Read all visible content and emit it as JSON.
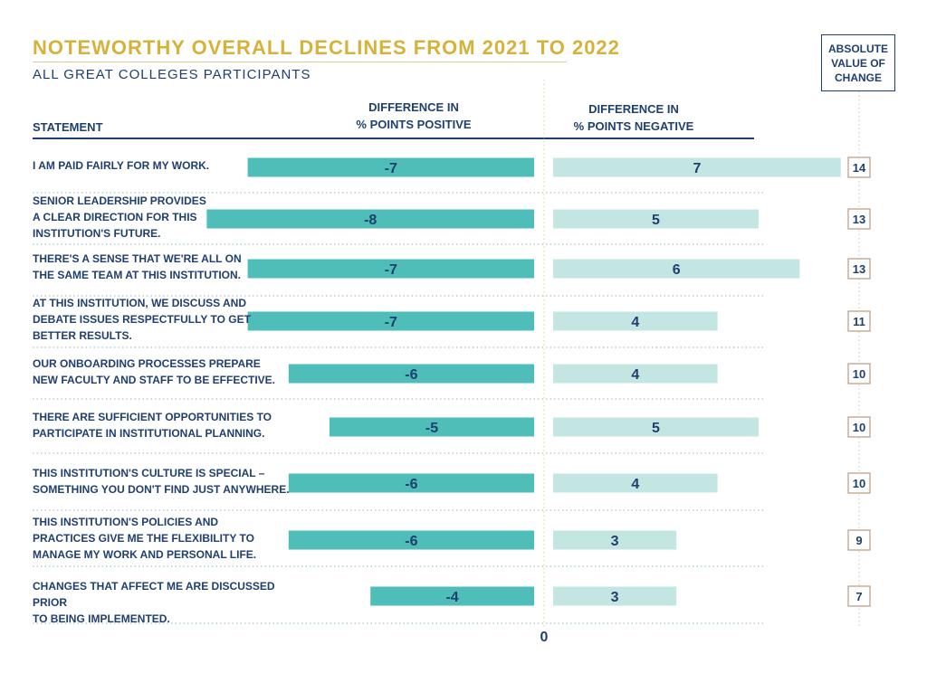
{
  "chart_data": {
    "type": "bar",
    "title": "NOTEWORTHY OVERALL DECLINES FROM 2021 TO 2022",
    "subtitle": "ALL GREAT COLLEGES PARTICIPANTS",
    "column_headers": {
      "statement": "STATEMENT",
      "positive": "DIFFERENCE IN\n% POINTS POSITIVE",
      "negative": "DIFFERENCE IN\n% POINTS NEGATIVE",
      "absolute": "ABSOLUTE\nVALUE OF\nCHANGE"
    },
    "zero_label": "0",
    "categories": [
      "I AM PAID FAIRLY FOR MY WORK.",
      "SENIOR LEADERSHIP PROVIDES\nA CLEAR DIRECTION FOR THIS\nINSTITUTION'S FUTURE.",
      "THERE'S A SENSE THAT WE'RE ALL ON\nTHE SAME TEAM AT THIS INSTITUTION.",
      "AT THIS INSTITUTION, WE DISCUSS AND\nDEBATE ISSUES RESPECTFULLY TO GET\nBETTER RESULTS.",
      "OUR ONBOARDING PROCESSES PREPARE\nNEW FACULTY AND STAFF TO BE EFFECTIVE.",
      "THERE ARE SUFFICIENT OPPORTUNITIES TO\nPARTICIPATE IN INSTITUTIONAL PLANNING.",
      "THIS INSTITUTION'S CULTURE IS SPECIAL –\nSOMETHING YOU DON'T FIND JUST ANYWHERE.",
      "THIS INSTITUTION'S POLICIES AND\nPRACTICES GIVE ME THE FLEXIBILITY TO\nMANAGE MY WORK AND PERSONAL LIFE.",
      "CHANGES THAT AFFECT ME ARE DISCUSSED PRIOR\nTO BEING IMPLEMENTED."
    ],
    "series": [
      {
        "name": "DIFFERENCE IN % POINTS POSITIVE",
        "values": [
          -7,
          -8,
          -7,
          -7,
          -6,
          -5,
          -6,
          -6,
          -4
        ],
        "color": "#4fbdb8"
      },
      {
        "name": "DIFFERENCE IN % POINTS NEGATIVE",
        "values": [
          7,
          5,
          6,
          4,
          4,
          5,
          4,
          3,
          3
        ],
        "color": "#c4e6e3"
      }
    ],
    "absolute_change": [
      14,
      13,
      13,
      11,
      10,
      10,
      10,
      9,
      7
    ],
    "colors": {
      "title": "#d6b23a",
      "text": "#1f3f6e",
      "box_border": "#b89a82",
      "guide": "#d8d48a"
    }
  }
}
